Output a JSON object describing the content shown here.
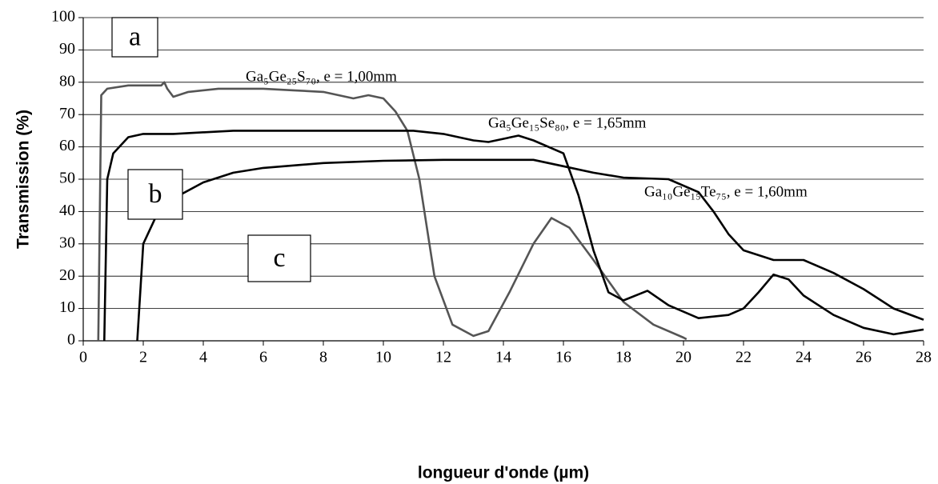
{
  "chart_data": {
    "type": "line",
    "xlabel": "longueur d'onde (µm)",
    "ylabel": "Transmission (%)",
    "xlim": [
      0,
      28
    ],
    "xticks": [
      0,
      2,
      4,
      6,
      8,
      10,
      12,
      14,
      16,
      18,
      20,
      22,
      24,
      26,
      28
    ],
    "ylim": [
      0,
      100
    ],
    "yticks": [
      0,
      10,
      20,
      30,
      40,
      50,
      60,
      70,
      80,
      90,
      100
    ],
    "grid": true,
    "annotations": [
      "a",
      "b",
      "c"
    ],
    "series": [
      {
        "name": "Ga₅Ge₂₅S₇₀, e = 1,00mm",
        "color": "#555555",
        "x": [
          0.5,
          0.6,
          0.8,
          1.5,
          2.6,
          2.7,
          2.8,
          3.0,
          3.5,
          4.5,
          6,
          7,
          8,
          9,
          9.5,
          10,
          10.4,
          10.8,
          11.2,
          11.7,
          12.3,
          13,
          13.5,
          14.2,
          15,
          15.6,
          16.2,
          17,
          18,
          19,
          20,
          20.1
        ],
        "values": [
          0,
          76,
          78,
          79,
          79,
          80,
          78,
          75.5,
          77,
          78,
          78,
          77.5,
          77,
          75,
          76,
          75,
          71,
          65,
          50,
          20,
          5,
          1.5,
          3,
          15,
          30,
          38,
          35,
          25,
          12,
          5,
          1,
          0.5
        ]
      },
      {
        "name": "Ga₅Ge₁₅Se₈₀, e = 1,65mm",
        "color": "#000000",
        "x": [
          0.7,
          0.8,
          1.0,
          1.5,
          2,
          3,
          5,
          8,
          10,
          11,
          12,
          13,
          13.5,
          14.5,
          15,
          16,
          16.5,
          17,
          17.5,
          18,
          18.8,
          19.5,
          20.5,
          21.5,
          22,
          22.5,
          23,
          23.5,
          24,
          25,
          26,
          27,
          28
        ],
        "values": [
          0,
          50,
          58,
          63,
          64,
          64,
          65,
          65,
          65,
          65,
          64,
          62,
          61.5,
          63.5,
          62,
          58,
          45,
          28,
          15,
          12.5,
          15.5,
          11,
          7,
          8,
          10,
          15,
          20.5,
          19,
          14,
          8,
          4,
          2,
          3.5
        ]
      },
      {
        "name": "Ga₁₀Ge₁₅Te₇₅, e = 1,60mm",
        "color": "#000000",
        "x": [
          1.8,
          2,
          2.5,
          3,
          4,
          5,
          6,
          8,
          10,
          12,
          14,
          15,
          16,
          17,
          18,
          19.5,
          20.5,
          21,
          21.5,
          22,
          23,
          24,
          25,
          26,
          27,
          28
        ],
        "values": [
          0,
          30,
          40,
          44,
          49,
          52,
          53.5,
          55,
          55.7,
          56,
          56,
          56,
          54,
          52,
          50.5,
          50,
          46,
          40,
          33,
          28,
          25,
          25,
          21,
          16,
          10,
          6.5
        ]
      }
    ]
  }
}
